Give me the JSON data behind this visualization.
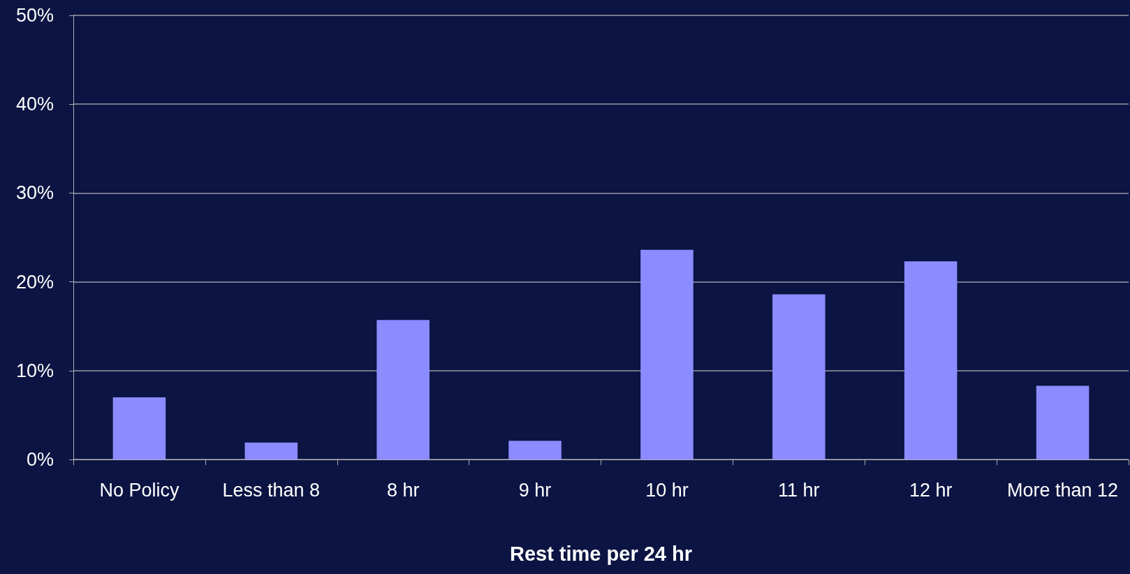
{
  "chart_data": {
    "type": "bar",
    "xlabel": "Rest time per 24 hr",
    "categories": [
      "No Policy",
      "Less than 8",
      "8 hr",
      "9 hr",
      "10 hr",
      "11 hr",
      "12 hr",
      "More than 12"
    ],
    "values": [
      7.0,
      1.9,
      15.7,
      2.1,
      23.6,
      18.6,
      22.3,
      8.3
    ],
    "color": "#8a8cff",
    "ylim": [
      0,
      50
    ],
    "yticks": [
      {
        "value": 0,
        "label": "0%"
      },
      {
        "value": 10,
        "label": "10%"
      },
      {
        "value": 20,
        "label": "20%"
      },
      {
        "value": 30,
        "label": "30%"
      },
      {
        "value": 40,
        "label": "40%"
      },
      {
        "value": 50,
        "label": "50%"
      }
    ],
    "grid": "y"
  }
}
